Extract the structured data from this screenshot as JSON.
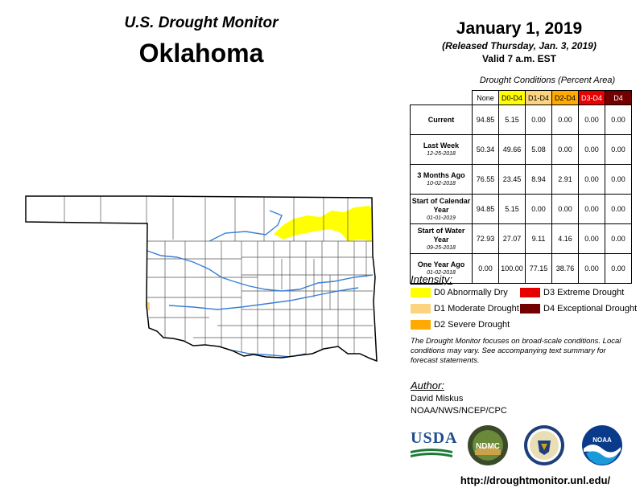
{
  "header": {
    "title_line1": "U.S. Drought Monitor",
    "title_line2": "Oklahoma",
    "date": "January 1, 2019",
    "released": "(Released Thursday, Jan. 3, 2019)",
    "valid": "Valid 7 a.m. EST"
  },
  "table": {
    "caption": "Drought Conditions (Percent Area)",
    "columns": [
      "None",
      "D0-D4",
      "D1-D4",
      "D2-D4",
      "D3-D4",
      "D4"
    ],
    "column_colors": [
      "#ffffff",
      "#ffff00",
      "#fcd37f",
      "#ffaa00",
      "#e60000",
      "#730000"
    ],
    "column_text_colors": [
      "#000000",
      "#000000",
      "#000000",
      "#000000",
      "#ffffff",
      "#ffffff"
    ],
    "rows": [
      {
        "label": "Current",
        "date": "",
        "values": [
          "94.85",
          "5.15",
          "0.00",
          "0.00",
          "0.00",
          "0.00"
        ]
      },
      {
        "label": "Last Week",
        "date": "12-25-2018",
        "values": [
          "50.34",
          "49.66",
          "5.08",
          "0.00",
          "0.00",
          "0.00"
        ]
      },
      {
        "label": "3 Months Ago",
        "date": "10-02-2018",
        "values": [
          "76.55",
          "23.45",
          "8.94",
          "2.91",
          "0.00",
          "0.00"
        ]
      },
      {
        "label": "Start of Calendar Year",
        "date": "01-01-2019",
        "values": [
          "94.85",
          "5.15",
          "0.00",
          "0.00",
          "0.00",
          "0.00"
        ]
      },
      {
        "label": "Start of Water Year",
        "date": "09-25-2018",
        "values": [
          "72.93",
          "27.07",
          "9.11",
          "4.16",
          "0.00",
          "0.00"
        ]
      },
      {
        "label": "One Year Ago",
        "date": "01-02-2018",
        "values": [
          "0.00",
          "100.00",
          "77.15",
          "38.76",
          "0.00",
          "0.00"
        ]
      }
    ]
  },
  "legend": {
    "title": "Intensity:",
    "items": [
      {
        "label": "D0 Abnormally Dry",
        "color": "#ffff00"
      },
      {
        "label": "D1 Moderate Drought",
        "color": "#fcd37f"
      },
      {
        "label": "D2 Severe Drought",
        "color": "#ffaa00"
      },
      {
        "label": "D3 Extreme Drought",
        "color": "#e60000"
      },
      {
        "label": "D4 Exceptional Drought",
        "color": "#730000"
      }
    ]
  },
  "note": "The Drought Monitor focuses on broad-scale conditions. Local conditions may vary. See accompanying text summary for forecast statements.",
  "author": {
    "title": "Author:",
    "name": "David Miskus",
    "org": "NOAA/NWS/NCEP/CPC"
  },
  "logos": {
    "usda": "USDA",
    "ndmc": "NDMC",
    "noaa": "NOAA"
  },
  "url": "http://droughtmonitor.unl.edu/",
  "map": {
    "state_fill": "#ffffff",
    "border_color": "#000000",
    "county_color": "#555555",
    "river_color": "#3a7fd5",
    "d0_color": "#ffff00",
    "d1_color": "#fcd37f"
  }
}
